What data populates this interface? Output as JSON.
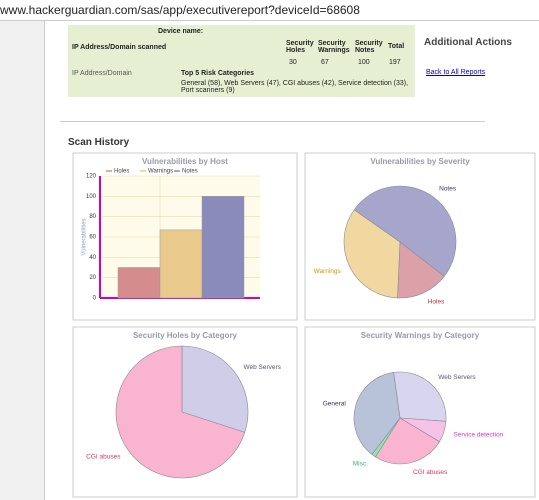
{
  "url": "www.hackerguardian.com/sas/app/executivereport?deviceId=68608",
  "summary": {
    "device_name_label": "Device name:",
    "ip_scanned_label": "IP Address/Domain scanned",
    "headers": [
      "Security Holes",
      "Security Warnings",
      "Security Notes",
      "Total"
    ],
    "counts": [
      30,
      67,
      100,
      197
    ],
    "ip_label": "IP Address/Domain",
    "top5_label": "Top 5 Risk Categories",
    "top5_text": "General (58), Web Servers (47), CGI abuses (42), Service detection (33), Port scanners (9)"
  },
  "actions": {
    "title": "Additional Actions",
    "back": "Back to All Reports"
  },
  "scan_history": "Scan History",
  "chart_data": [
    {
      "type": "bar",
      "title": "Vulnerabilities by Host",
      "y_label": "Vulnerabilities",
      "categories": [
        null
      ],
      "series": [
        {
          "name": "Holes",
          "color": "#d48c8c",
          "values": [
            30
          ]
        },
        {
          "name": "Warnings",
          "color": "#e9c98c",
          "values": [
            67
          ]
        },
        {
          "name": "Notes",
          "color": "#8a8abb",
          "values": [
            100
          ]
        }
      ],
      "ylim": [
        0,
        120
      ],
      "yticks": [
        0,
        20,
        40,
        60,
        80,
        100,
        120
      ],
      "grid": true
    },
    {
      "type": "pie",
      "title": "Vulnerabilities by Severity",
      "categories": [
        "Notes",
        "Holes",
        "Warnings"
      ],
      "values": [
        100,
        30,
        67
      ],
      "colors": [
        "#a6a6cc",
        "#dca0a8",
        "#f0d8a0"
      ]
    },
    {
      "type": "pie",
      "title": "Security Holes by Category",
      "categories": [
        "Web Servers",
        "CGI abuses"
      ],
      "values": [
        9,
        21
      ],
      "colors": [
        "#cfcde8",
        "#f9b4cf"
      ]
    },
    {
      "type": "pie",
      "title": "Security Warnings by Category",
      "categories": [
        "Web Servers",
        "Service detection",
        "CGI abuses",
        "Misc.",
        "General"
      ],
      "values": [
        19,
        5,
        17,
        1,
        25
      ],
      "colors": [
        "#d8d6ee",
        "#f6c2e6",
        "#f9b4cf",
        "#8ee8a8",
        "#b8c2d8"
      ]
    }
  ]
}
